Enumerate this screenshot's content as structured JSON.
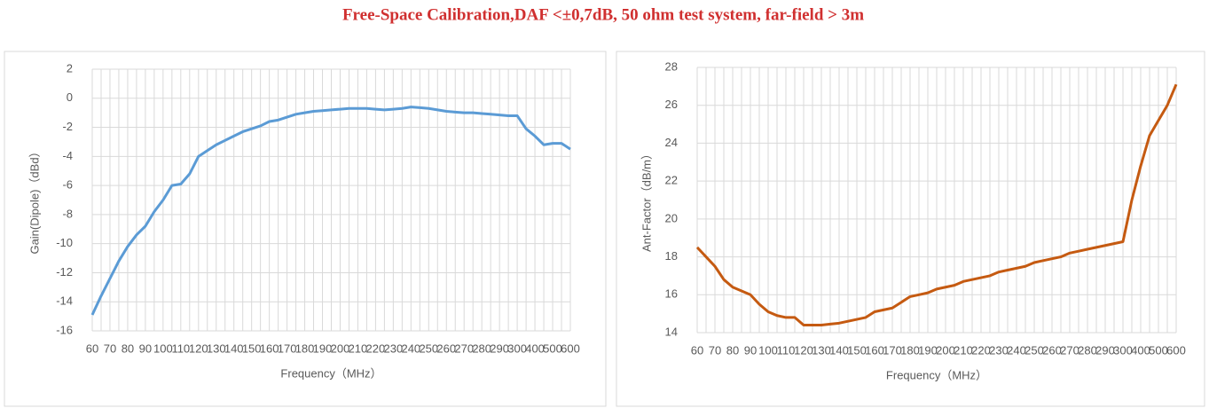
{
  "header": {
    "title": "Free-Space Calibration,DAF <±0,7dB,  50 ohm  test system,  far-field > 3m"
  },
  "chart_data": [
    {
      "type": "line",
      "x_label": "Frequency（MHz）",
      "y_label": "Gain(Dipole)（dBd）",
      "categories": [
        60,
        null,
        70,
        null,
        80,
        null,
        90,
        null,
        100,
        null,
        110,
        null,
        120,
        null,
        130,
        null,
        140,
        null,
        150,
        null,
        160,
        null,
        170,
        null,
        180,
        null,
        190,
        null,
        200,
        null,
        210,
        null,
        220,
        null,
        230,
        null,
        240,
        null,
        250,
        null,
        260,
        null,
        270,
        null,
        280,
        null,
        290,
        null,
        300,
        null,
        400,
        null,
        500,
        null,
        600
      ],
      "series": [
        {
          "name": "Gain",
          "color": "#5b9bd5",
          "values": [
            -14.9,
            -13.6,
            -12.4,
            -11.2,
            -10.2,
            -9.4,
            -8.8,
            -7.8,
            -7.0,
            -6.0,
            -5.9,
            -5.2,
            -4.0,
            -3.6,
            -3.2,
            -2.9,
            -2.6,
            -2.3,
            -2.1,
            -1.9,
            -1.6,
            -1.5,
            -1.3,
            -1.1,
            -1.0,
            -0.9,
            -0.85,
            -0.8,
            -0.75,
            -0.7,
            -0.7,
            -0.7,
            -0.75,
            -0.8,
            -0.75,
            -0.7,
            -0.6,
            -0.65,
            -0.7,
            -0.8,
            -0.9,
            -0.95,
            -1.0,
            -1.0,
            -1.05,
            -1.1,
            -1.15,
            -1.2,
            -1.2,
            -2.1,
            -2.6,
            -3.2,
            -3.1,
            -3.1,
            -3.5
          ]
        }
      ],
      "ylim": [
        -16,
        2
      ],
      "yticks": [
        -16,
        -14,
        -12,
        -10,
        -8,
        -6,
        -4,
        -2,
        0,
        2
      ],
      "grid": true
    },
    {
      "type": "line",
      "x_label": "Frequency（MHz）",
      "y_label": "Ant-Factor（dB/m）",
      "categories": [
        60,
        null,
        70,
        null,
        80,
        null,
        90,
        null,
        100,
        null,
        110,
        null,
        120,
        null,
        130,
        null,
        140,
        null,
        150,
        null,
        160,
        null,
        170,
        null,
        180,
        null,
        190,
        null,
        200,
        null,
        210,
        null,
        220,
        null,
        230,
        null,
        240,
        null,
        250,
        null,
        260,
        null,
        270,
        null,
        280,
        null,
        290,
        null,
        300,
        null,
        400,
        null,
        500,
        null,
        600
      ],
      "series": [
        {
          "name": "Ant-Factor",
          "color": "#c55a11",
          "values": [
            18.5,
            18.0,
            17.5,
            16.8,
            16.4,
            16.2,
            16.0,
            15.5,
            15.1,
            14.9,
            14.8,
            14.8,
            14.4,
            14.4,
            14.4,
            14.45,
            14.5,
            14.6,
            14.7,
            14.8,
            15.1,
            15.2,
            15.3,
            15.6,
            15.9,
            16.0,
            16.1,
            16.3,
            16.4,
            16.5,
            16.7,
            16.8,
            16.9,
            17.0,
            17.2,
            17.3,
            17.4,
            17.5,
            17.7,
            17.8,
            17.9,
            18.0,
            18.2,
            18.3,
            18.4,
            18.5,
            18.6,
            18.7,
            18.8,
            21.0,
            22.8,
            24.4,
            25.2,
            26.0,
            27.1
          ]
        }
      ],
      "ylim": [
        14,
        28
      ],
      "yticks": [
        14,
        16,
        18,
        20,
        22,
        24,
        26,
        28
      ],
      "grid": true
    }
  ]
}
